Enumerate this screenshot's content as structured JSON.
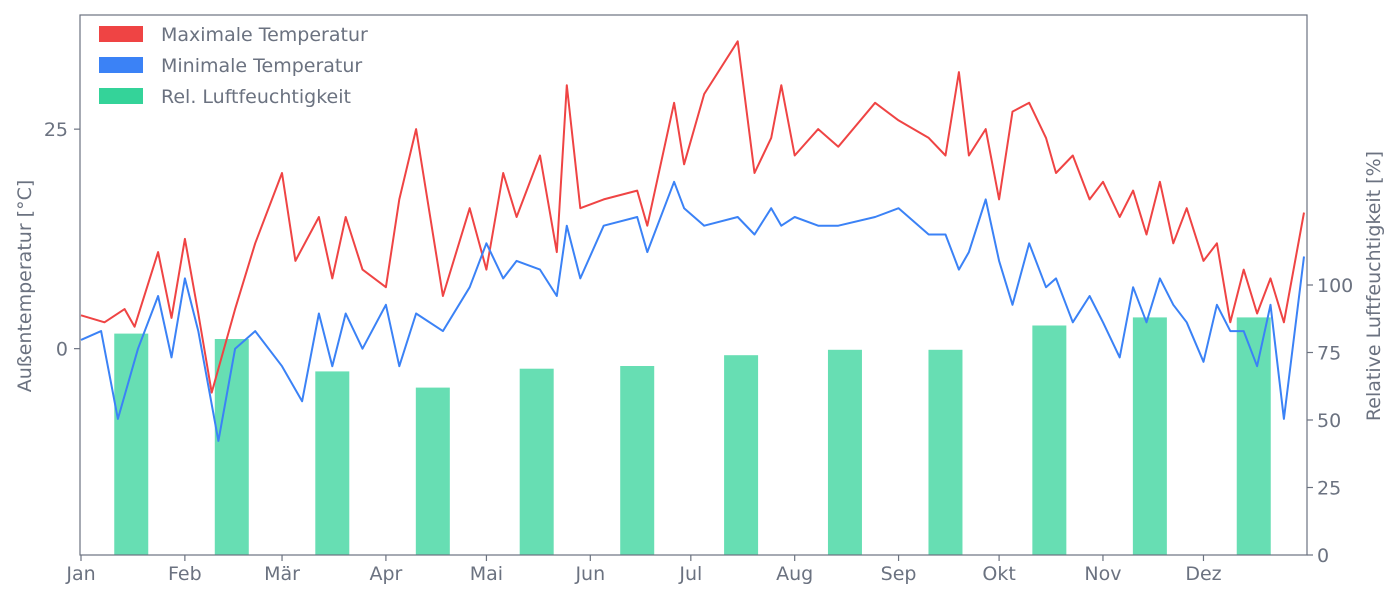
{
  "chart_data": {
    "type": "bar-line-combo",
    "title": "",
    "x_axis": {
      "type": "date",
      "start": "2020-01-01",
      "end": "2020-12-31",
      "tick_labels": [
        "Jan",
        "Feb",
        "Mär",
        "Apr",
        "Mai",
        "Jun",
        "Jul",
        "Aug",
        "Sep",
        "Okt",
        "Nov",
        "Dez"
      ]
    },
    "y_left": {
      "label": "Außentemperatur [°C]",
      "range": [
        -23.5,
        38
      ],
      "ticks": [
        0,
        25
      ]
    },
    "y_right": {
      "label": "Relative Luftfeuchtigkeit [%]",
      "range": [
        0,
        200
      ],
      "ticks": [
        0,
        25,
        50,
        75,
        100
      ]
    },
    "grid": false,
    "legend": {
      "position": "top-left",
      "entries": [
        "Maximale Temperatur",
        "Minimale Temperatur",
        "Rel. Luftfeuchtigkeit"
      ]
    },
    "series": [
      {
        "name": "Maximale Temperatur",
        "axis": "left",
        "kind": "line",
        "color": "#ef4444",
        "points": [
          [
            "2020-01-01",
            3.8
          ],
          [
            "2020-01-08",
            3.0
          ],
          [
            "2020-01-14",
            4.5
          ],
          [
            "2020-01-17",
            2.5
          ],
          [
            "2020-01-24",
            11.0
          ],
          [
            "2020-01-28",
            3.5
          ],
          [
            "2020-02-01",
            12.5
          ],
          [
            "2020-02-05",
            4.0
          ],
          [
            "2020-02-09",
            -5.0
          ],
          [
            "2020-02-16",
            4.5
          ],
          [
            "2020-02-22",
            12.0
          ],
          [
            "2020-03-01",
            20.0
          ],
          [
            "2020-03-05",
            10.0
          ],
          [
            "2020-03-12",
            15.0
          ],
          [
            "2020-03-16",
            8.0
          ],
          [
            "2020-03-20",
            15.0
          ],
          [
            "2020-03-25",
            9.0
          ],
          [
            "2020-04-01",
            7.0
          ],
          [
            "2020-04-05",
            17.0
          ],
          [
            "2020-04-10",
            25.0
          ],
          [
            "2020-04-18",
            6.0
          ],
          [
            "2020-04-26",
            16.0
          ],
          [
            "2020-05-01",
            9.0
          ],
          [
            "2020-05-06",
            20.0
          ],
          [
            "2020-05-10",
            15.0
          ],
          [
            "2020-05-17",
            22.0
          ],
          [
            "2020-05-22",
            11.0
          ],
          [
            "2020-05-25",
            30.0
          ],
          [
            "2020-05-29",
            16.0
          ],
          [
            "2020-06-05",
            17.0
          ],
          [
            "2020-06-15",
            18.0
          ],
          [
            "2020-06-18",
            14.0
          ],
          [
            "2020-06-26",
            28.0
          ],
          [
            "2020-06-29",
            21.0
          ],
          [
            "2020-07-05",
            29.0
          ],
          [
            "2020-07-15",
            35.0
          ],
          [
            "2020-07-20",
            20.0
          ],
          [
            "2020-07-25",
            24.0
          ],
          [
            "2020-07-28",
            30.0
          ],
          [
            "2020-08-01",
            22.0
          ],
          [
            "2020-08-08",
            25.0
          ],
          [
            "2020-08-14",
            23.0
          ],
          [
            "2020-08-25",
            28.0
          ],
          [
            "2020-09-01",
            26.0
          ],
          [
            "2020-09-10",
            24.0
          ],
          [
            "2020-09-15",
            22.0
          ],
          [
            "2020-09-19",
            31.5
          ],
          [
            "2020-09-22",
            22.0
          ],
          [
            "2020-09-27",
            25.0
          ],
          [
            "2020-10-01",
            17.0
          ],
          [
            "2020-10-05",
            27.0
          ],
          [
            "2020-10-10",
            28.0
          ],
          [
            "2020-10-15",
            24.0
          ],
          [
            "2020-10-18",
            20.0
          ],
          [
            "2020-10-23",
            22.0
          ],
          [
            "2020-10-28",
            17.0
          ],
          [
            "2020-11-01",
            19.0
          ],
          [
            "2020-11-06",
            15.0
          ],
          [
            "2020-11-10",
            18.0
          ],
          [
            "2020-11-14",
            13.0
          ],
          [
            "2020-11-18",
            19.0
          ],
          [
            "2020-11-22",
            12.0
          ],
          [
            "2020-11-26",
            16.0
          ],
          [
            "2020-12-01",
            10.0
          ],
          [
            "2020-12-05",
            12.0
          ],
          [
            "2020-12-09",
            3.0
          ],
          [
            "2020-12-13",
            9.0
          ],
          [
            "2020-12-17",
            4.0
          ],
          [
            "2020-12-21",
            8.0
          ],
          [
            "2020-12-25",
            3.0
          ],
          [
            "2020-12-31",
            15.5
          ]
        ]
      },
      {
        "name": "Minimale Temperatur",
        "axis": "left",
        "kind": "line",
        "color": "#3b82f6",
        "points": [
          [
            "2020-01-01",
            1.0
          ],
          [
            "2020-01-07",
            2.0
          ],
          [
            "2020-01-12",
            -8.0
          ],
          [
            "2020-01-18",
            0.0
          ],
          [
            "2020-01-24",
            6.0
          ],
          [
            "2020-01-28",
            -1.0
          ],
          [
            "2020-02-01",
            8.0
          ],
          [
            "2020-02-05",
            2.0
          ],
          [
            "2020-02-11",
            -10.5
          ],
          [
            "2020-02-16",
            0.0
          ],
          [
            "2020-02-22",
            2.0
          ],
          [
            "2020-03-01",
            -2.0
          ],
          [
            "2020-03-07",
            -6.0
          ],
          [
            "2020-03-12",
            4.0
          ],
          [
            "2020-03-16",
            -2.0
          ],
          [
            "2020-03-20",
            4.0
          ],
          [
            "2020-03-25",
            0.0
          ],
          [
            "2020-04-01",
            5.0
          ],
          [
            "2020-04-05",
            -2.0
          ],
          [
            "2020-04-10",
            4.0
          ],
          [
            "2020-04-18",
            2.0
          ],
          [
            "2020-04-26",
            7.0
          ],
          [
            "2020-05-01",
            12.0
          ],
          [
            "2020-05-06",
            8.0
          ],
          [
            "2020-05-10",
            10.0
          ],
          [
            "2020-05-17",
            9.0
          ],
          [
            "2020-05-22",
            6.0
          ],
          [
            "2020-05-25",
            14.0
          ],
          [
            "2020-05-29",
            8.0
          ],
          [
            "2020-06-05",
            14.0
          ],
          [
            "2020-06-15",
            15.0
          ],
          [
            "2020-06-18",
            11.0
          ],
          [
            "2020-06-26",
            19.0
          ],
          [
            "2020-06-29",
            16.0
          ],
          [
            "2020-07-05",
            14.0
          ],
          [
            "2020-07-15",
            15.0
          ],
          [
            "2020-07-20",
            13.0
          ],
          [
            "2020-07-25",
            16.0
          ],
          [
            "2020-07-28",
            14.0
          ],
          [
            "2020-08-01",
            15.0
          ],
          [
            "2020-08-08",
            14.0
          ],
          [
            "2020-08-14",
            14.0
          ],
          [
            "2020-08-25",
            15.0
          ],
          [
            "2020-09-01",
            16.0
          ],
          [
            "2020-09-10",
            13.0
          ],
          [
            "2020-09-15",
            13.0
          ],
          [
            "2020-09-19",
            9.0
          ],
          [
            "2020-09-22",
            11.0
          ],
          [
            "2020-09-27",
            17.0
          ],
          [
            "2020-10-01",
            10.0
          ],
          [
            "2020-10-05",
            5.0
          ],
          [
            "2020-10-10",
            12.0
          ],
          [
            "2020-10-15",
            7.0
          ],
          [
            "2020-10-18",
            8.0
          ],
          [
            "2020-10-23",
            3.0
          ],
          [
            "2020-10-28",
            6.0
          ],
          [
            "2020-11-01",
            3.0
          ],
          [
            "2020-11-06",
            -1.0
          ],
          [
            "2020-11-10",
            7.0
          ],
          [
            "2020-11-14",
            3.0
          ],
          [
            "2020-11-18",
            8.0
          ],
          [
            "2020-11-22",
            5.0
          ],
          [
            "2020-11-26",
            3.0
          ],
          [
            "2020-12-01",
            -1.5
          ],
          [
            "2020-12-05",
            5.0
          ],
          [
            "2020-12-09",
            2.0
          ],
          [
            "2020-12-13",
            2.0
          ],
          [
            "2020-12-17",
            -2.0
          ],
          [
            "2020-12-21",
            5.0
          ],
          [
            "2020-12-25",
            -8.0
          ],
          [
            "2020-12-31",
            10.5
          ]
        ]
      },
      {
        "name": "Rel. Luftfeuchtigkeit",
        "axis": "right",
        "kind": "bar",
        "color": "#34d399",
        "categories": [
          "Jan",
          "Feb",
          "Mär",
          "Apr",
          "Mai",
          "Jun",
          "Jul",
          "Aug",
          "Sep",
          "Okt",
          "Nov",
          "Dez"
        ],
        "values": [
          82,
          80,
          68,
          62,
          69,
          70,
          74,
          76,
          76,
          85,
          88,
          88
        ]
      }
    ]
  }
}
